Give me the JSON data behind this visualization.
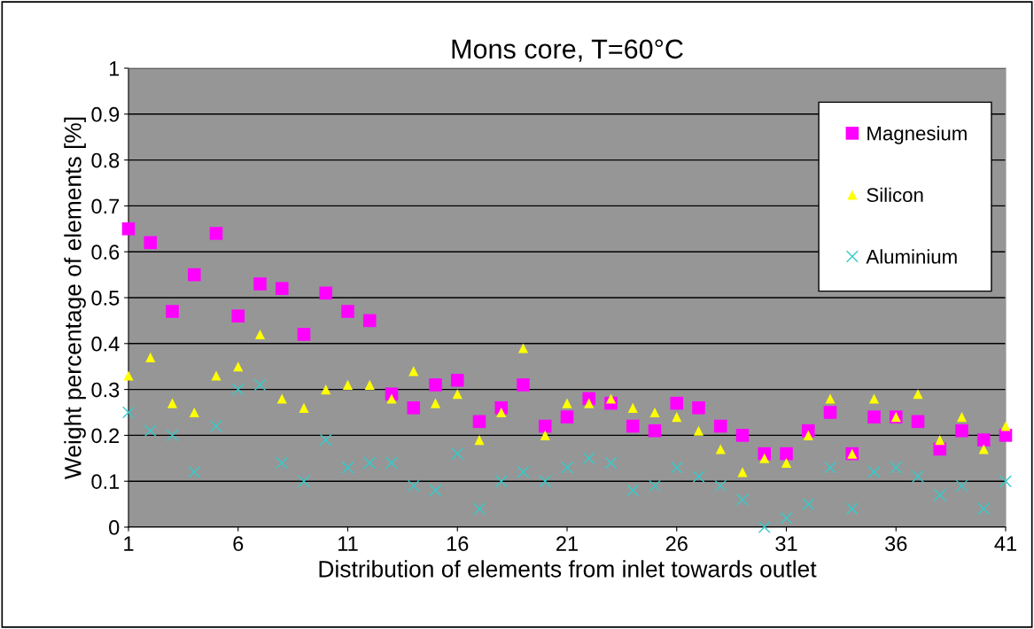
{
  "chart_data": {
    "type": "scatter",
    "title": "Mons core, T=60°C",
    "xlabel": "Distribution of elements from inlet towards outlet",
    "ylabel": "Weight percentage of elements [%]",
    "x": [
      1,
      2,
      3,
      4,
      5,
      6,
      7,
      8,
      9,
      10,
      11,
      12,
      13,
      14,
      15,
      16,
      17,
      18,
      19,
      20,
      21,
      22,
      23,
      24,
      25,
      26,
      27,
      28,
      29,
      30,
      31,
      32,
      33,
      34,
      35,
      36,
      37,
      38,
      39,
      40,
      41
    ],
    "series": [
      {
        "name": "Magnesium",
        "color": "#ff00ff",
        "marker": "square",
        "values": [
          0.65,
          0.62,
          0.47,
          0.55,
          0.64,
          0.46,
          0.53,
          0.52,
          0.42,
          0.51,
          0.47,
          0.45,
          0.29,
          0.26,
          0.31,
          0.32,
          0.23,
          0.26,
          0.31,
          0.22,
          0.24,
          0.28,
          0.27,
          0.22,
          0.21,
          0.27,
          0.26,
          0.22,
          0.2,
          0.16,
          0.16,
          0.21,
          0.25,
          0.16,
          0.24,
          0.24,
          0.23,
          0.17,
          0.21,
          0.19,
          0.2
        ]
      },
      {
        "name": "Silicon",
        "color": "#ffff00",
        "marker": "triangle",
        "values": [
          0.33,
          0.37,
          0.27,
          0.25,
          0.33,
          0.35,
          0.42,
          0.28,
          0.26,
          0.3,
          0.31,
          0.31,
          0.28,
          0.34,
          0.27,
          0.29,
          0.19,
          0.25,
          0.39,
          0.2,
          0.27,
          0.27,
          0.28,
          0.26,
          0.25,
          0.24,
          0.21,
          0.17,
          0.12,
          0.15,
          0.14,
          0.2,
          0.28,
          0.16,
          0.28,
          0.24,
          0.29,
          0.19,
          0.24,
          0.17,
          0.22
        ]
      },
      {
        "name": "Aluminium",
        "color": "#33cccc",
        "marker": "cross",
        "values": [
          0.25,
          0.21,
          0.2,
          0.12,
          0.22,
          0.3,
          0.31,
          0.14,
          0.1,
          0.19,
          0.13,
          0.14,
          0.14,
          0.09,
          0.08,
          0.16,
          0.04,
          0.1,
          0.12,
          0.1,
          0.13,
          0.15,
          0.14,
          0.08,
          0.09,
          0.13,
          0.11,
          0.09,
          0.06,
          0.0,
          0.02,
          0.05,
          0.13,
          0.04,
          0.12,
          0.13,
          0.11,
          0.07,
          0.09,
          0.04,
          0.1
        ]
      }
    ],
    "xlim": [
      1,
      41
    ],
    "xticks": [
      1,
      6,
      11,
      16,
      21,
      26,
      31,
      36,
      41
    ],
    "ylim": [
      0,
      1
    ],
    "yticks": [
      0,
      0.1,
      0.2,
      0.3,
      0.4,
      0.5,
      0.6,
      0.7,
      0.8,
      0.9,
      1
    ],
    "grid": "y",
    "legend": "right"
  }
}
